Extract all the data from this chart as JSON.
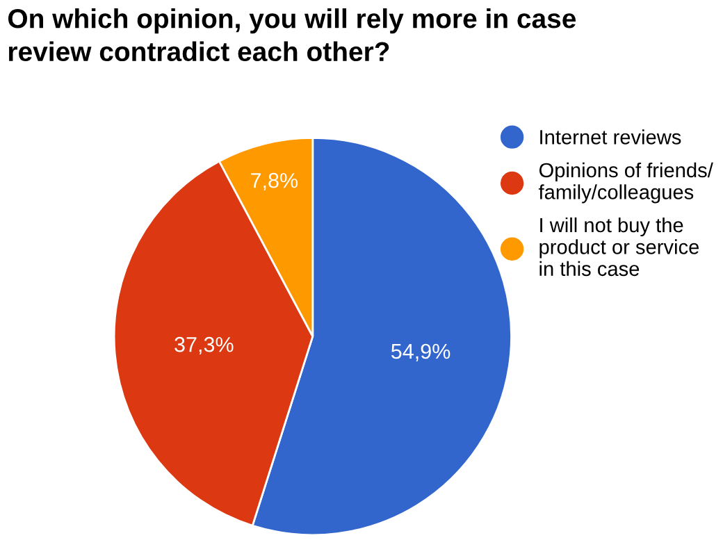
{
  "chart_data": {
    "type": "pie",
    "title": "On which opinion, you will rely more in case\nreview contradict each other?",
    "categories": [
      "Internet reviews",
      "Opinions of friends/\nfamily/colleagues",
      "I will not buy the\nproduct or service\nin this case"
    ],
    "values": [
      54.9,
      37.3,
      7.8
    ],
    "colors": [
      "#3366cc",
      "#dc3912",
      "#ff9900"
    ],
    "value_labels": [
      "54,9%",
      "37,3%",
      "7,8%"
    ],
    "legend": "right"
  }
}
